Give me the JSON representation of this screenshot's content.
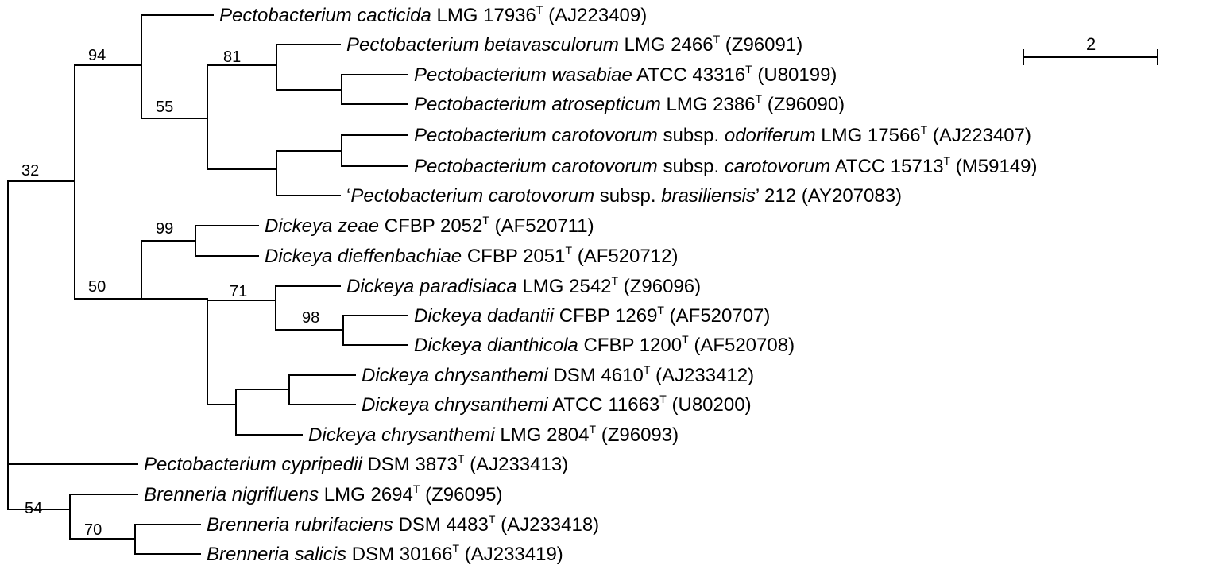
{
  "tree": {
    "taxa": [
      {
        "id": "pcac",
        "species": "Pectobacterium cacticida",
        "strain": " LMG 17936",
        "type_strain": "T",
        "accession": " (AJ223409)"
      },
      {
        "id": "pbet",
        "species": "Pectobacterium betavasculorum",
        "strain": " LMG 2466",
        "type_strain": "T",
        "accession": " (Z96091)"
      },
      {
        "id": "pwas",
        "species": "Pectobacterium wasabiae",
        "strain": " ATCC 43316",
        "type_strain": "T",
        "accession": " (U80199)"
      },
      {
        "id": "patr",
        "species": "Pectobacterium atrosepticum",
        "strain": " LMG 2386",
        "type_strain": "T",
        "accession": " (Z96090)"
      },
      {
        "id": "pcod",
        "species": "Pectobacterium carotovorum",
        "subsp_prefix": " subsp. ",
        "subspecies": "odoriferum",
        "strain": " LMG 17566",
        "type_strain": "T",
        "accession": " (AJ223407)"
      },
      {
        "id": "pccc",
        "species": "Pectobacterium carotovorum",
        "subsp_prefix": " subsp. ",
        "subspecies": "carotovorum",
        "strain": " ATCC 15713",
        "type_strain": "T",
        "accession": " (M59149)"
      },
      {
        "id": "pcbr",
        "open_quote": "‘",
        "species": "Pectobacterium carotovorum",
        "subsp_prefix": " subsp. ",
        "subspecies": "brasiliensis",
        "close_quote": "’",
        "strain": " 212",
        "accession": " (AY207083)"
      },
      {
        "id": "dzea",
        "species": "Dickeya zeae",
        "strain": " CFBP 2052",
        "type_strain": "T",
        "accession": " (AF520711)"
      },
      {
        "id": "ddie",
        "species": "Dickeya dieffenbachiae",
        "strain": " CFBP 2051",
        "type_strain": "T",
        "accession": " (AF520712)"
      },
      {
        "id": "dpar",
        "species": "Dickeya paradisiaca",
        "strain": " LMG 2542",
        "type_strain": "T",
        "accession": " (Z96096)"
      },
      {
        "id": "ddad",
        "species": "Dickeya dadantii",
        "strain": " CFBP 1269",
        "type_strain": "T",
        "accession": " (AF520707)"
      },
      {
        "id": "ddia",
        "species": "Dickeya dianthicola",
        "strain": " CFBP 1200",
        "type_strain": "T",
        "accession": " (AF520708)"
      },
      {
        "id": "dch1",
        "species": "Dickeya chrysanthemi",
        "strain": " DSM 4610",
        "type_strain": "T",
        "accession": " (AJ233412)"
      },
      {
        "id": "dch2",
        "species": "Dickeya chrysanthemi",
        "strain": " ATCC 11663",
        "type_strain": "T",
        "accession": " (U80200)"
      },
      {
        "id": "dch3",
        "species": "Dickeya chrysanthemi",
        "strain": " LMG 2804",
        "type_strain": "T",
        "accession": " (Z96093)"
      },
      {
        "id": "pcyp",
        "species": "Pectobacterium cypripedii",
        "strain": " DSM 3873",
        "type_strain": "T",
        "accession": " (AJ233413)"
      },
      {
        "id": "bnig",
        "species": "Brenneria nigrifluens",
        "strain": " LMG 2694",
        "type_strain": "T",
        "accession": " (Z96095)"
      },
      {
        "id": "brub",
        "species": "Brenneria rubrifaciens",
        "strain": " DSM 4483",
        "type_strain": "T",
        "accession": " (AJ233418)"
      },
      {
        "id": "bsal",
        "species": "Brenneria salicis",
        "strain": " DSM 30166",
        "type_strain": "T",
        "accession": " (AJ233419)"
      }
    ],
    "bootstrap_values": {
      "root_pecto_dickeya": "32",
      "pectobacterium_clade": "94",
      "pectobacterium_core": "55",
      "betavasculorum_group": "81",
      "dickeya_clade": "50",
      "zeae_dieffenbachiae": "99",
      "paradisiaca_group": "71",
      "dadantii_dianthicola": "98",
      "brenneria_clade": "54",
      "rubrifaciens_salicis": "70"
    },
    "scale_bar": {
      "label": "2"
    }
  }
}
